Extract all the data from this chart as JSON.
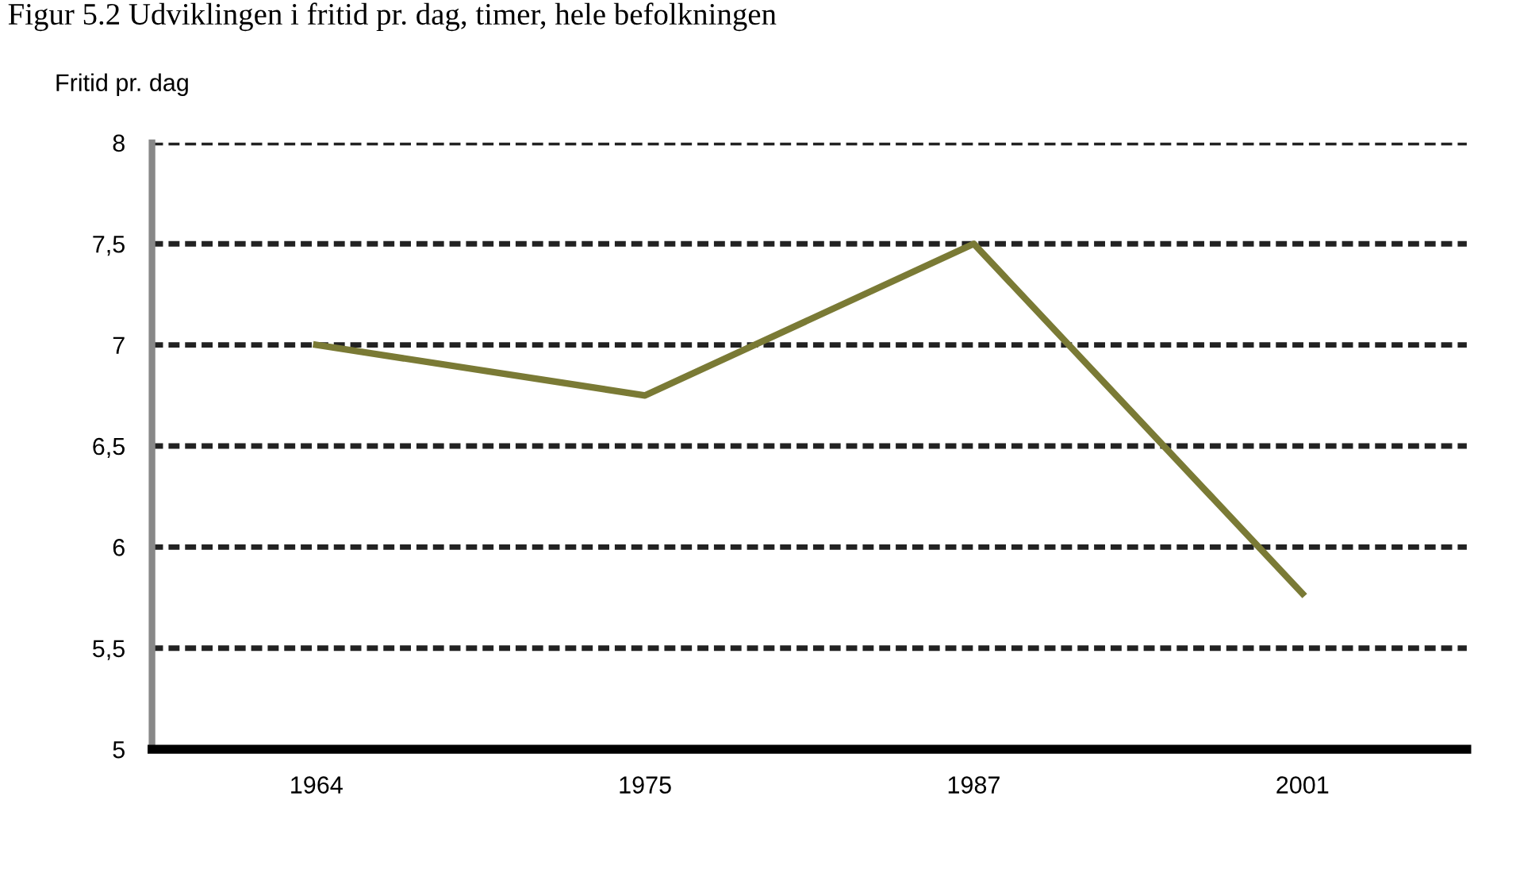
{
  "chart_data": {
    "type": "line",
    "title": "Figur 5.2 Udviklingen i fritid pr. dag, timer, hele befolkningen",
    "ylabel": "Fritid pr. dag",
    "categories": [
      "1964",
      "1975",
      "1987",
      "2001"
    ],
    "series": [
      {
        "color": "#7a7a35",
        "values": [
          7.0,
          6.75,
          7.5,
          5.77
        ]
      }
    ],
    "ylim": [
      5,
      8
    ],
    "yticks": [
      5,
      {
        "value": 5.5,
        "label": "5,5"
      },
      6,
      {
        "value": 6.5,
        "label": "6,5"
      },
      7,
      {
        "value": 7.5,
        "label": "7,5"
      },
      8
    ],
    "grid": "y",
    "marker": "none",
    "line_style": "solid"
  }
}
